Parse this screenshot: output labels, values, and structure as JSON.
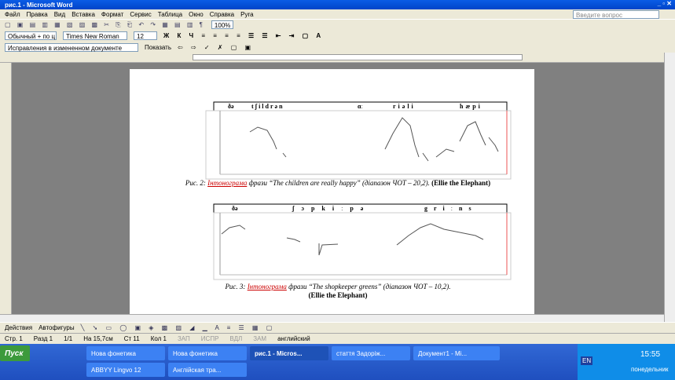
{
  "window": {
    "title": "рис.1 - Microsoft Word",
    "help_box": "Введите вопрос"
  },
  "menu": [
    "Файл",
    "Правка",
    "Вид",
    "Вставка",
    "Формат",
    "Сервис",
    "Таблица",
    "Окно",
    "Справка",
    "Pyra"
  ],
  "toolbar": {
    "zoom": "100%",
    "style": "Обычный + по ц",
    "font": "Times New Roman",
    "size": "12",
    "review_mode": "Исправления в измененном документе",
    "show": "Показать"
  },
  "figure1": {
    "words": [
      "ðə",
      "tʃildrən",
      "ɑː",
      "riəli",
      "hæpi"
    ],
    "caption_label": "Рис. 2:",
    "caption_term": "Інтонограма",
    "caption_text": "фрази “The children are really happy” (діапазон ЧОТ – 20,2).",
    "source": "(Ellie the Elephant)"
  },
  "figure2": {
    "words": [
      "ðə",
      "ʃɔpkiːpə",
      "griːns"
    ],
    "caption_label": "Рис. 3:",
    "caption_term": "Інтонограма",
    "caption_text": "фрази “The shopkeeper greens” (діапазон ЧОТ – 10,2).",
    "source": "(Ellie the Elephant)"
  },
  "drawing": {
    "actions": "Действия",
    "autoshapes": "Автофигуры"
  },
  "status": [
    "Стр. 1",
    "Разд 1",
    "1/1",
    "На 15,7см",
    "Ст 11",
    "Кол 1",
    "ЗАП",
    "ИСПР",
    "ВДЛ",
    "ЗАМ",
    "английский"
  ],
  "taskbar": {
    "start": "Пуск",
    "buttons": [
      "Нова фонетика",
      "Нова фонетика",
      "рис.1 - Micros...",
      "стаття Задорiж...",
      "Документ1 - Mi...",
      "ABBYY Lingvo 12",
      "Англійская тра..."
    ],
    "lang": "EN",
    "time": "15:55",
    "day": "понедельник"
  }
}
